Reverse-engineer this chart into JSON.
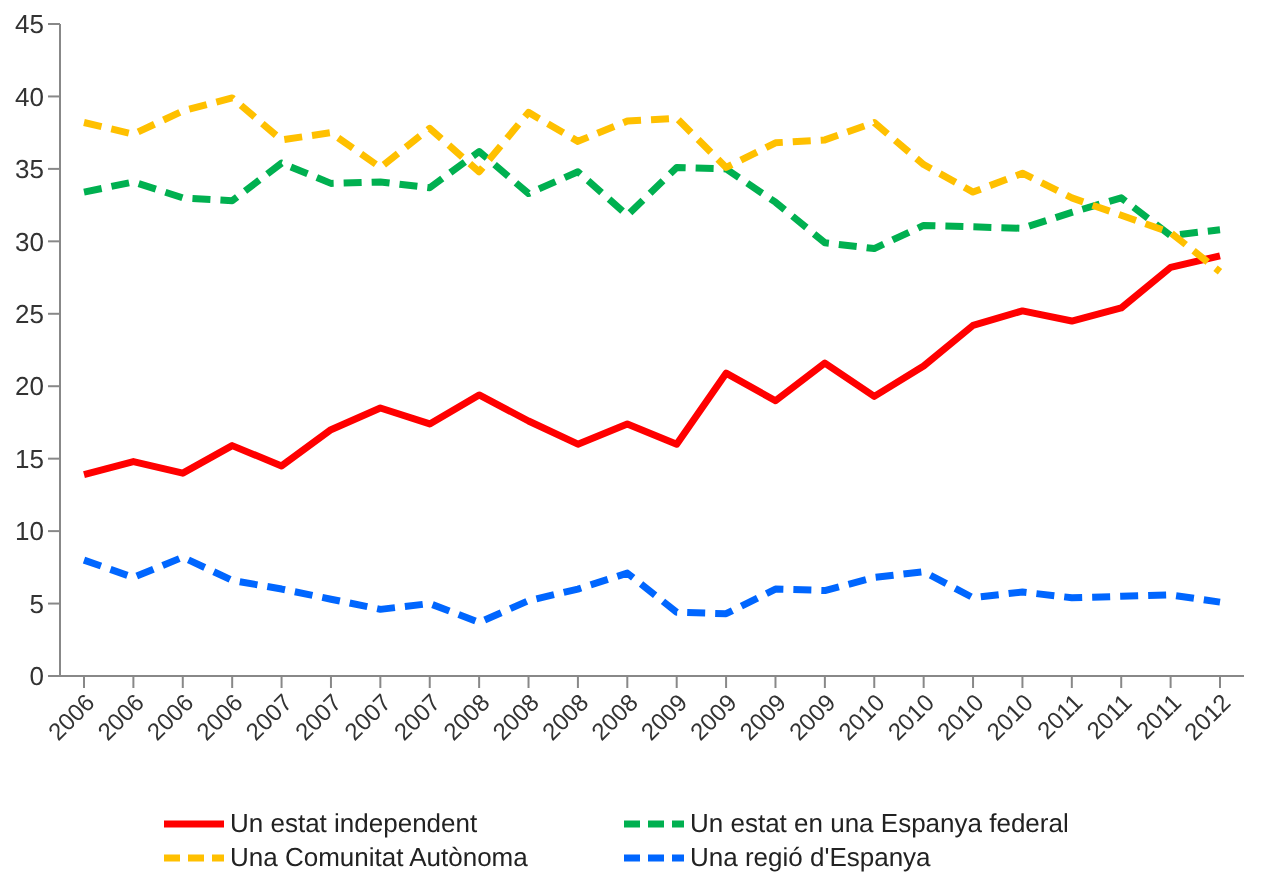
{
  "chart_data": {
    "type": "line",
    "categories": [
      "2006",
      "2006",
      "2006",
      "2006",
      "2007",
      "2007",
      "2007",
      "2007",
      "2008",
      "2008",
      "2008",
      "2008",
      "2009",
      "2009",
      "2009",
      "2009",
      "2010",
      "2010",
      "2010",
      "2010",
      "2011",
      "2011",
      "2011",
      "2012"
    ],
    "series": [
      {
        "name": "Un estat independent",
        "color": "#ff0000",
        "line_style": "solid",
        "values": [
          13.9,
          14.8,
          14.0,
          15.9,
          14.5,
          17.0,
          18.5,
          17.4,
          19.4,
          17.6,
          16.0,
          17.4,
          16.0,
          20.9,
          19.0,
          21.6,
          19.3,
          21.4,
          24.2,
          25.2,
          24.5,
          25.4,
          28.2,
          29.0
        ]
      },
      {
        "name": "Un estat en una Espanya federal",
        "color": "#00b050",
        "line_style": "dashed",
        "values": [
          33.4,
          34.1,
          33.0,
          32.8,
          35.4,
          34.0,
          34.1,
          33.7,
          36.2,
          33.3,
          34.8,
          31.8,
          35.1,
          35.0,
          32.7,
          29.9,
          29.5,
          31.1,
          31.0,
          30.9,
          32.0,
          33.0,
          30.4,
          30.8
        ]
      },
      {
        "name": "Una Comunitat Autònoma",
        "color": "#ffc000",
        "line_style": "dashed",
        "values": [
          38.2,
          37.4,
          39.0,
          39.9,
          37.0,
          37.5,
          35.1,
          37.8,
          34.8,
          38.9,
          36.9,
          38.3,
          38.5,
          35.1,
          36.8,
          37.0,
          38.2,
          35.3,
          33.4,
          34.7,
          33.0,
          31.8,
          30.6,
          27.9
        ]
      },
      {
        "name": "Una regió d'Espanya",
        "color": "#0066ff",
        "line_style": "dashed",
        "values": [
          8.0,
          6.8,
          8.2,
          6.6,
          6.0,
          5.3,
          4.6,
          5.0,
          3.7,
          5.2,
          6.0,
          7.1,
          4.4,
          4.3,
          6.0,
          5.9,
          6.8,
          7.2,
          5.4,
          5.8,
          5.4,
          5.5,
          5.6,
          5.1
        ]
      }
    ],
    "ylim": [
      0,
      45
    ],
    "yticks": [
      0,
      5,
      10,
      15,
      20,
      25,
      30,
      35,
      40,
      45
    ],
    "grid": false,
    "legend": "bottom",
    "marker": "none"
  }
}
